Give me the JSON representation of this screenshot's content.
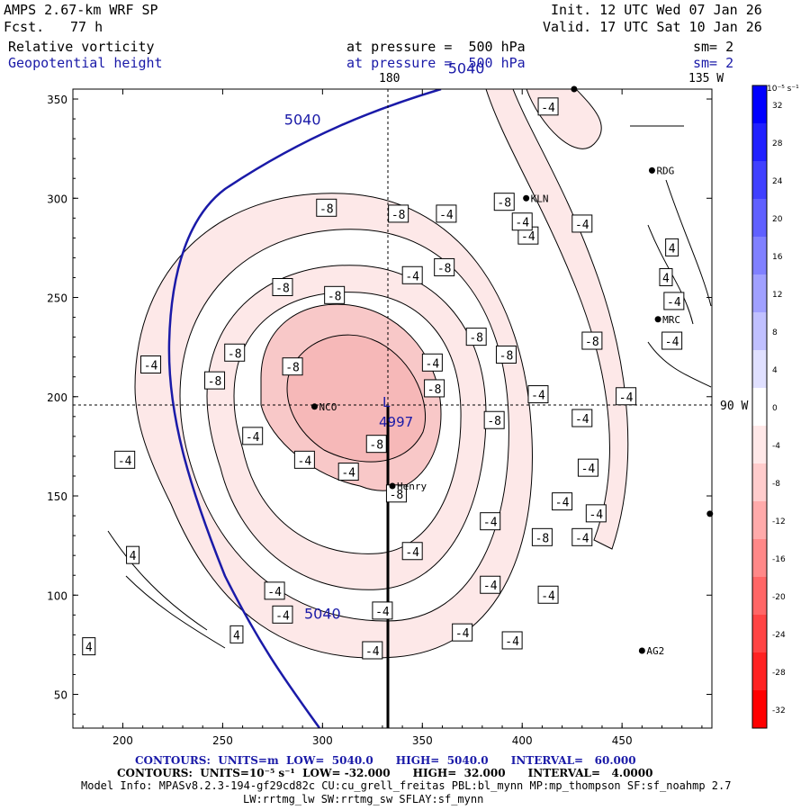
{
  "header": {
    "title": "AMPS 2.67-km WRF SP",
    "forecast_label": "Fcst.",
    "forecast_value": "77 h",
    "init": "Init. 12 UTC Wed 07 Jan 26",
    "valid": "Valid. 17 UTC Sat 10 Jan 26",
    "field1_name": "Relative vorticity",
    "field1_level": "at pressure =  500 hPa",
    "field1_sm": "sm= 2",
    "field2_name": "Geopotential height",
    "field2_level": "at pressure =  500 hPa",
    "field2_sm": "sm= 2"
  },
  "map_labels": {
    "lon_180": "180",
    "lon_135w": "135 W",
    "lat_90w": "90 W",
    "stations": [
      {
        "name": "NCO",
        "x": 296,
        "y": 195
      },
      {
        "name": "Henry",
        "x": 335,
        "y": 155
      },
      {
        "name": "KLN",
        "x": 402,
        "y": 300
      },
      {
        "name": "RDG",
        "x": 465,
        "y": 314
      },
      {
        "name": "MRC",
        "x": 468,
        "y": 239
      },
      {
        "name": "AG2",
        "x": 460,
        "y": 72
      },
      {
        "name": "",
        "x": 426,
        "y": 355
      },
      {
        "name": "",
        "x": 494,
        "y": 141
      }
    ],
    "low_center_value": "4997",
    "low_symbol": "L"
  },
  "chart_data": {
    "type": "contour",
    "title": "Relative vorticity / Geopotential height at 500 hPa",
    "xlim": [
      175,
      495
    ],
    "ylim": [
      33,
      355
    ],
    "x_ticks": [
      200,
      250,
      300,
      350,
      400,
      450
    ],
    "y_ticks": [
      50,
      100,
      150,
      200,
      250,
      300,
      350
    ],
    "height_contours": [
      {
        "value": "5040",
        "label_positions": [
          [
            372,
            363
          ],
          [
            290,
            337
          ],
          [
            300,
            88
          ]
        ]
      }
    ],
    "vorticity_labels": [
      {
        "text": "-4",
        "x": 413,
        "y": 346
      },
      {
        "text": "-8",
        "x": 302,
        "y": 295
      },
      {
        "text": "-8",
        "x": 338,
        "y": 292
      },
      {
        "text": "-4",
        "x": 362,
        "y": 292
      },
      {
        "text": "-4",
        "x": 403,
        "y": 281
      },
      {
        "text": "-4",
        "x": 400,
        "y": 288
      },
      {
        "text": "-8",
        "x": 391,
        "y": 298
      },
      {
        "text": "-4",
        "x": 430,
        "y": 287
      },
      {
        "text": "4",
        "x": 475,
        "y": 275
      },
      {
        "text": "4",
        "x": 472,
        "y": 260
      },
      {
        "text": "-8",
        "x": 361,
        "y": 265
      },
      {
        "text": "-4",
        "x": 345,
        "y": 261
      },
      {
        "text": "-8",
        "x": 280,
        "y": 255
      },
      {
        "text": "-8",
        "x": 306,
        "y": 251
      },
      {
        "text": "-4",
        "x": 476,
        "y": 248
      },
      {
        "text": "-8",
        "x": 435,
        "y": 228
      },
      {
        "text": "-8",
        "x": 377,
        "y": 230
      },
      {
        "text": "-4",
        "x": 475,
        "y": 228
      },
      {
        "text": "-8",
        "x": 256,
        "y": 222
      },
      {
        "text": "-8",
        "x": 392,
        "y": 221
      },
      {
        "text": "-4",
        "x": 214,
        "y": 216
      },
      {
        "text": "-8",
        "x": 285,
        "y": 215
      },
      {
        "text": "-4",
        "x": 355,
        "y": 217
      },
      {
        "text": "-8",
        "x": 246,
        "y": 208
      },
      {
        "text": "-8",
        "x": 356,
        "y": 204
      },
      {
        "text": "-4",
        "x": 408,
        "y": 201
      },
      {
        "text": "-4",
        "x": 452,
        "y": 200
      },
      {
        "text": "-8",
        "x": 386,
        "y": 188
      },
      {
        "text": "-4",
        "x": 430,
        "y": 189
      },
      {
        "text": "-8",
        "x": 327,
        "y": 176
      },
      {
        "text": "-4",
        "x": 265,
        "y": 180
      },
      {
        "text": "-4",
        "x": 201,
        "y": 168
      },
      {
        "text": "-4",
        "x": 291,
        "y": 168
      },
      {
        "text": "-4",
        "x": 313,
        "y": 162
      },
      {
        "text": "-4",
        "x": 433,
        "y": 164
      },
      {
        "text": "-8",
        "x": 337,
        "y": 151
      },
      {
        "text": "-4",
        "x": 420,
        "y": 147
      },
      {
        "text": "-4",
        "x": 437,
        "y": 141
      },
      {
        "text": "-4",
        "x": 384,
        "y": 137
      },
      {
        "text": "-8",
        "x": 410,
        "y": 129
      },
      {
        "text": "-4",
        "x": 430,
        "y": 129
      },
      {
        "text": "4",
        "x": 205,
        "y": 120
      },
      {
        "text": "-4",
        "x": 345,
        "y": 122
      },
      {
        "text": "-4",
        "x": 384,
        "y": 105
      },
      {
        "text": "-4",
        "x": 413,
        "y": 100
      },
      {
        "text": "-4",
        "x": 276,
        "y": 102
      },
      {
        "text": "-4",
        "x": 280,
        "y": 90
      },
      {
        "text": "-4",
        "x": 330,
        "y": 92
      },
      {
        "text": "4",
        "x": 257,
        "y": 80
      },
      {
        "text": "-4",
        "x": 370,
        "y": 81
      },
      {
        "text": "-4",
        "x": 395,
        "y": 77
      },
      {
        "text": "4",
        "x": 183,
        "y": 74
      },
      {
        "text": "-4",
        "x": 325,
        "y": 72
      }
    ]
  },
  "colorbar": {
    "unit": "10⁻⁵ s⁻¹",
    "ticks": [
      "32",
      "28",
      "24",
      "20",
      "16",
      "12",
      "8",
      "4",
      "0",
      "-4",
      "-8",
      "-12",
      "-16",
      "-20",
      "-24",
      "-28",
      "-32"
    ],
    "colors": [
      "#0000ff",
      "#2020ff",
      "#4040ff",
      "#6060ff",
      "#8080ff",
      "#a0a0ff",
      "#c0c0ff",
      "#e0e0ff",
      "#ffffff",
      "#ffe8e8",
      "#ffcccc",
      "#ffaaaa",
      "#ff8888",
      "#ff6666",
      "#ff4444",
      "#ff2222",
      "#ff0000"
    ]
  },
  "footer": {
    "line1": "CONTOURS:  UNITS=m  LOW=  5040.0      HIGH=  5040.0      INTERVAL=   60.000",
    "line2": "CONTOURS:  UNITS=10⁻⁵ s⁻¹  LOW= -32.000      HIGH=  32.000      INTERVAL=   4.0000",
    "line3": "Model Info: MPASv8.2.3-194-gf29cd82c CU:cu_grell_freitas PBL:bl_mynn MP:mp_thompson SF:sf_noahmp 2.7",
    "line4": "LW:rrtmg_lw SW:rrtmg_sw SFLAY:sf_mynn"
  },
  "colors": {
    "height_contour": "#1a1aa8",
    "vort_light": "#fde8e8",
    "vort_mid": "#f8c8c8"
  }
}
